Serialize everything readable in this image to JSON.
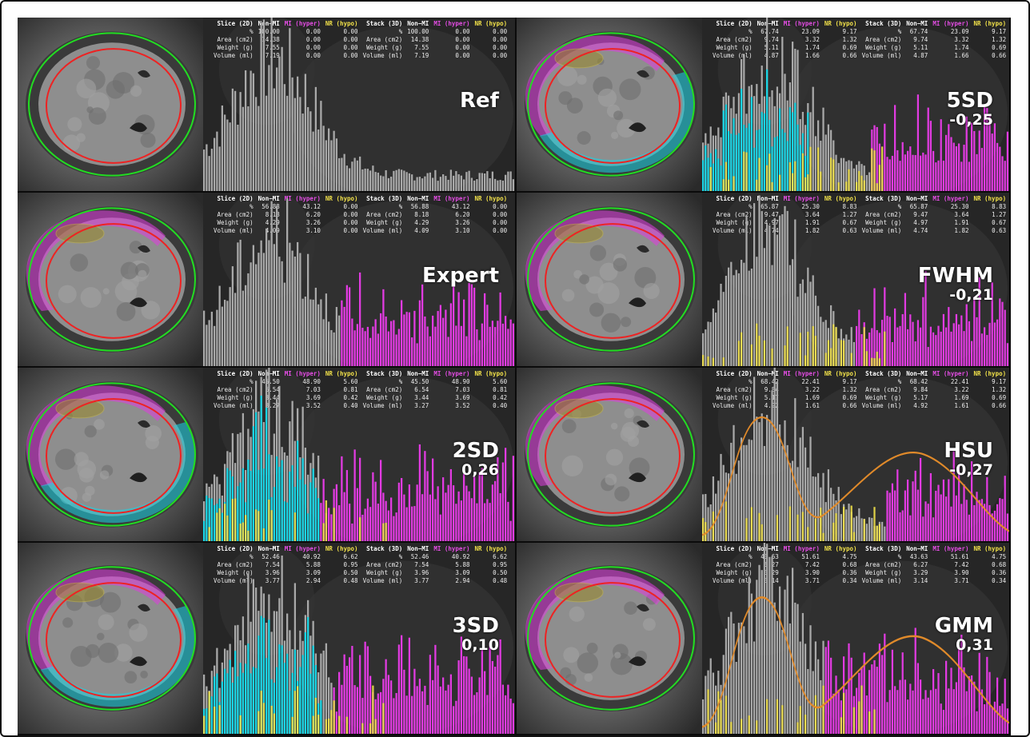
{
  "table_headers": {
    "slice": "Slice (2D)",
    "stack": "Stack (3D)",
    "non_mi": "Non−MI",
    "mi": "MI (hyper)",
    "nr": "NR (hypo)"
  },
  "row_labels": [
    "%",
    "Area (cm2)",
    "Weight (g)",
    "Volume (ml)"
  ],
  "colors": {
    "epicardium": "#22dd22",
    "endocardium": "#ee2222",
    "mi": "#e23be2",
    "nr": "#f2e24a",
    "cyan": "#19d6e6",
    "gray": "#a9a9a9",
    "fit": "#e08a2a"
  },
  "panels": [
    {
      "id": "ref",
      "name": "Ref",
      "score": "",
      "stats": [
        [
          "100.00",
          "0.00",
          "0.00"
        ],
        [
          "14.38",
          "0.00",
          "0.00"
        ],
        [
          "7.55",
          "0.00",
          "0.00"
        ],
        [
          "7.19",
          "0.00",
          "0.00"
        ]
      ],
      "mi_fraction": 0,
      "cyan_fraction": 0,
      "nr_fraction": 0,
      "fit": false,
      "epi_overlay": false
    },
    {
      "id": "5sd",
      "name": "5SD",
      "score": "-0,25",
      "stats": [
        [
          "67.74",
          "23.09",
          "9.17"
        ],
        [
          "9.74",
          "3.32",
          "1.32"
        ],
        [
          "5.11",
          "1.74",
          "0.69"
        ],
        [
          "4.87",
          "1.66",
          "0.66"
        ]
      ],
      "mi_fraction": 0.45,
      "cyan_fraction": 0.35,
      "nr_fraction": 0.2,
      "fit": false,
      "epi_overlay": true
    },
    {
      "id": "expert",
      "name": "Expert",
      "score": "",
      "stats": [
        [
          "56.88",
          "43.12",
          "0.00"
        ],
        [
          "8.18",
          "6.20",
          "0.00"
        ],
        [
          "4.29",
          "3.26",
          "0.00"
        ],
        [
          "4.09",
          "3.10",
          "0.00"
        ]
      ],
      "mi_fraction": 0.55,
      "cyan_fraction": 0,
      "nr_fraction": 0,
      "fit": false,
      "epi_overlay": true
    },
    {
      "id": "fwhm",
      "name": "FWHM",
      "score": "-0,21",
      "stats": [
        [
          "65.87",
          "25.30",
          "8.83"
        ],
        [
          "9.47",
          "3.64",
          "1.27"
        ],
        [
          "4.97",
          "1.91",
          "0.67"
        ],
        [
          "4.74",
          "1.82",
          "0.63"
        ]
      ],
      "mi_fraction": 0.5,
      "cyan_fraction": 0,
      "nr_fraction": 0.15,
      "fit": false,
      "epi_overlay": true
    },
    {
      "id": "2sd",
      "name": "2SD",
      "score": "0,26",
      "stats": [
        [
          "45.50",
          "48.90",
          "5.60"
        ],
        [
          "6.54",
          "7.03",
          "0.81"
        ],
        [
          "3.44",
          "3.69",
          "0.42"
        ],
        [
          "3.27",
          "3.52",
          "0.40"
        ]
      ],
      "mi_fraction": 0.62,
      "cyan_fraction": 0.4,
      "nr_fraction": 0.1,
      "fit": false,
      "epi_overlay": true
    },
    {
      "id": "hsu",
      "name": "HSU",
      "score": "-0,27",
      "stats": [
        [
          "68.42",
          "22.41",
          "9.17"
        ],
        [
          "9.84",
          "3.22",
          "1.32"
        ],
        [
          "5.17",
          "1.69",
          "0.69"
        ],
        [
          "4.92",
          "1.61",
          "0.66"
        ]
      ],
      "mi_fraction": 0.4,
      "cyan_fraction": 0,
      "nr_fraction": 0.2,
      "fit": true,
      "epi_overlay": true
    },
    {
      "id": "3sd",
      "name": "3SD",
      "score": "0,10",
      "stats": [
        [
          "52.46",
          "40.92",
          "6.62"
        ],
        [
          "7.54",
          "5.88",
          "0.95"
        ],
        [
          "3.96",
          "3.09",
          "0.50"
        ],
        [
          "3.77",
          "2.94",
          "0.48"
        ]
      ],
      "mi_fraction": 0.58,
      "cyan_fraction": 0.38,
      "nr_fraction": 0.12,
      "fit": false,
      "epi_overlay": true
    },
    {
      "id": "gmm",
      "name": "GMM",
      "score": "0,31",
      "stats": [
        [
          "43.63",
          "51.61",
          "4.75"
        ],
        [
          "6.27",
          "7.42",
          "0.68"
        ],
        [
          "3.29",
          "3.90",
          "0.36"
        ],
        [
          "3.14",
          "3.71",
          "0.34"
        ]
      ],
      "mi_fraction": 0.6,
      "cyan_fraction": 0,
      "nr_fraction": 0.1,
      "fit": true,
      "epi_overlay": true
    }
  ]
}
